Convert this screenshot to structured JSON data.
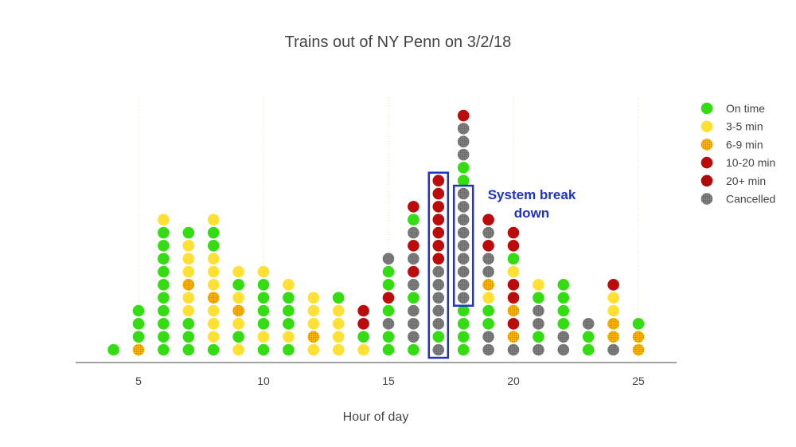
{
  "chart_data": {
    "type": "scatter",
    "title": "Trains out of NY Penn on 3/2/18",
    "xlabel": "Hour of day",
    "ylabel": "",
    "xlim": [
      2.5,
      26.5
    ],
    "xticks": [
      5,
      10,
      15,
      20,
      25
    ],
    "grid": "vertical dotted",
    "legend_position": "top-right",
    "categories": [
      {
        "key": "ontime",
        "name": "On time",
        "color": "#33dd11",
        "pattern": "solid"
      },
      {
        "key": "m35",
        "name": "3-5 min",
        "color": "#ffe033",
        "pattern": "solid"
      },
      {
        "key": "m69",
        "name": "6-9 min",
        "color": "#ffb300",
        "pattern": "dotted"
      },
      {
        "key": "m1020",
        "name": "10-20 min",
        "color": "#bb0b0b",
        "pattern": "solid"
      },
      {
        "key": "m20p",
        "name": "20+ min",
        "color": "#bb0b0b",
        "pattern": "dotted"
      },
      {
        "key": "cancelled",
        "name": "Cancelled",
        "color": "#7e7e7e",
        "pattern": "dotted"
      }
    ],
    "columns": [
      {
        "hour": 4,
        "stack": [
          "ontime"
        ]
      },
      {
        "hour": 5,
        "stack": [
          "m69",
          "ontime",
          "ontime",
          "ontime"
        ]
      },
      {
        "hour": 6,
        "stack": [
          "ontime",
          "ontime",
          "ontime",
          "ontime",
          "ontime",
          "ontime",
          "ontime",
          "ontime",
          "ontime",
          "ontime",
          "m35"
        ]
      },
      {
        "hour": 7,
        "stack": [
          "ontime",
          "ontime",
          "ontime",
          "m35",
          "m35",
          "m69",
          "m35",
          "m35",
          "m35",
          "ontime"
        ]
      },
      {
        "hour": 8,
        "stack": [
          "ontime",
          "m35",
          "m35",
          "m35",
          "m69",
          "m35",
          "m35",
          "m35",
          "ontime",
          "ontime",
          "m35"
        ]
      },
      {
        "hour": 9,
        "stack": [
          "m35",
          "ontime",
          "m35",
          "m69",
          "m35",
          "ontime",
          "m35"
        ]
      },
      {
        "hour": 10,
        "stack": [
          "ontime",
          "m35",
          "ontime",
          "ontime",
          "ontime",
          "ontime",
          "m35"
        ]
      },
      {
        "hour": 11,
        "stack": [
          "ontime",
          "m35",
          "ontime",
          "ontime",
          "ontime",
          "m35"
        ]
      },
      {
        "hour": 12,
        "stack": [
          "m35",
          "m69",
          "m35",
          "m35",
          "m35"
        ]
      },
      {
        "hour": 13,
        "stack": [
          "m35",
          "m35",
          "m35",
          "m35",
          "ontime"
        ]
      },
      {
        "hour": 14,
        "stack": [
          "m35",
          "ontime",
          "m1020",
          "m1020"
        ]
      },
      {
        "hour": 15,
        "stack": [
          "ontime",
          "ontime",
          "cancelled",
          "ontime",
          "m1020",
          "ontime",
          "ontime",
          "cancelled"
        ]
      },
      {
        "hour": 16,
        "stack": [
          "ontime",
          "cancelled",
          "cancelled",
          "cancelled",
          "ontime",
          "cancelled",
          "m1020",
          "cancelled",
          "m1020",
          "cancelled",
          "ontime",
          "m1020"
        ]
      },
      {
        "hour": 17,
        "stack": [
          "cancelled",
          "ontime",
          "cancelled",
          "cancelled",
          "cancelled",
          "cancelled",
          "cancelled",
          "m1020",
          "m1020",
          "m1020",
          "m1020",
          "m1020",
          "m1020",
          "m1020"
        ]
      },
      {
        "hour": 18,
        "stack": [
          "ontime",
          "ontime",
          "ontime",
          "ontime",
          "cancelled",
          "cancelled",
          "cancelled",
          "cancelled",
          "cancelled",
          "cancelled",
          "cancelled",
          "cancelled",
          "cancelled",
          "ontime",
          "ontime",
          "cancelled",
          "cancelled",
          "cancelled",
          "m1020"
        ]
      },
      {
        "hour": 19,
        "stack": [
          "cancelled",
          "cancelled",
          "ontime",
          "ontime",
          "m35",
          "m69",
          "cancelled",
          "cancelled",
          "m1020",
          "cancelled",
          "m1020"
        ]
      },
      {
        "hour": 20,
        "stack": [
          "cancelled",
          "m69",
          "m1020",
          "m69",
          "m1020",
          "m1020",
          "m35",
          "ontime",
          "m1020",
          "m1020"
        ]
      },
      {
        "hour": 21,
        "stack": [
          "cancelled",
          "ontime",
          "cancelled",
          "cancelled",
          "ontime",
          "m35"
        ]
      },
      {
        "hour": 22,
        "stack": [
          "cancelled",
          "cancelled",
          "ontime",
          "ontime",
          "ontime",
          "ontime"
        ]
      },
      {
        "hour": 23,
        "stack": [
          "ontime",
          "ontime",
          "cancelled"
        ]
      },
      {
        "hour": 24,
        "stack": [
          "cancelled",
          "m69",
          "m69",
          "m35",
          "m35",
          "m1020"
        ]
      },
      {
        "hour": 25,
        "stack": [
          "m69",
          "m69",
          "ontime"
        ]
      }
    ],
    "annotation": {
      "lines": [
        "System break",
        "down"
      ],
      "color": "#1f33c8",
      "boxed_hours": [
        17,
        18
      ]
    }
  }
}
